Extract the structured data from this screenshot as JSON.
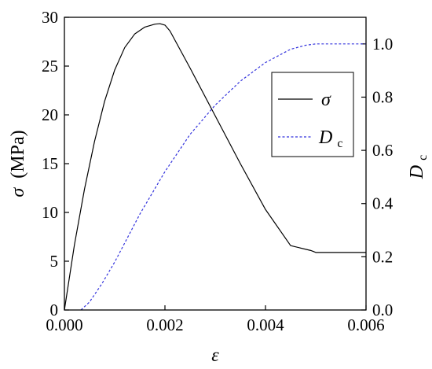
{
  "chart_data": {
    "type": "line",
    "x_axis": {
      "label_symbol": "ε",
      "lim": [
        0,
        0.006
      ],
      "ticks": [
        0,
        0.002,
        0.004,
        0.006
      ],
      "tick_labels": [
        "0.000",
        "0.002",
        "0.004",
        "0.006"
      ]
    },
    "y_left": {
      "label_symbol": "σ",
      "label_unit": "(MPa)",
      "lim": [
        0,
        30
      ],
      "ticks": [
        0,
        5,
        10,
        15,
        20,
        25,
        30
      ],
      "tick_labels": [
        "0",
        "5",
        "10",
        "15",
        "20",
        "25",
        "30"
      ]
    },
    "y_right": {
      "label_main": "D",
      "label_sub": "c",
      "lim": [
        0,
        1.1
      ],
      "ticks": [
        0,
        0.2,
        0.4,
        0.6,
        0.8,
        1.0
      ],
      "tick_labels": [
        "0.0",
        "0.2",
        "0.4",
        "0.6",
        "0.8",
        "1.0"
      ]
    },
    "grid": false,
    "legend_placement": "center-right",
    "series": [
      {
        "name": "σ",
        "axis": "left",
        "style": "solid",
        "color": "#000000",
        "x": [
          0,
          0.0002,
          0.0004,
          0.0006,
          0.0008,
          0.001,
          0.0012,
          0.0014,
          0.0016,
          0.0018,
          0.0019,
          0.002,
          0.0021,
          0.0025,
          0.003,
          0.0035,
          0.004,
          0.0045,
          0.0049,
          0.005,
          0.0055,
          0.006
        ],
        "y": [
          0,
          6.7,
          12.4,
          17.3,
          21.4,
          24.6,
          26.9,
          28.3,
          29.0,
          29.3,
          29.35,
          29.2,
          28.6,
          24.8,
          19.9,
          15.0,
          10.3,
          6.6,
          6.1,
          5.9,
          5.9,
          5.9
        ]
      },
      {
        "name": "Dc",
        "legend_main": "D",
        "legend_sub": "c",
        "axis": "right",
        "style": "dashed",
        "color": "#3333dd",
        "x": [
          0.00033,
          0.0005,
          0.00075,
          0.001,
          0.00125,
          0.0015,
          0.00175,
          0.002,
          0.0025,
          0.003,
          0.0035,
          0.004,
          0.0045,
          0.0048,
          0.005,
          0.0055,
          0.006
        ],
        "y": [
          0,
          0.03,
          0.1,
          0.18,
          0.27,
          0.36,
          0.44,
          0.52,
          0.66,
          0.77,
          0.86,
          0.93,
          0.98,
          0.995,
          1.0,
          1.0,
          1.0
        ]
      }
    ]
  }
}
